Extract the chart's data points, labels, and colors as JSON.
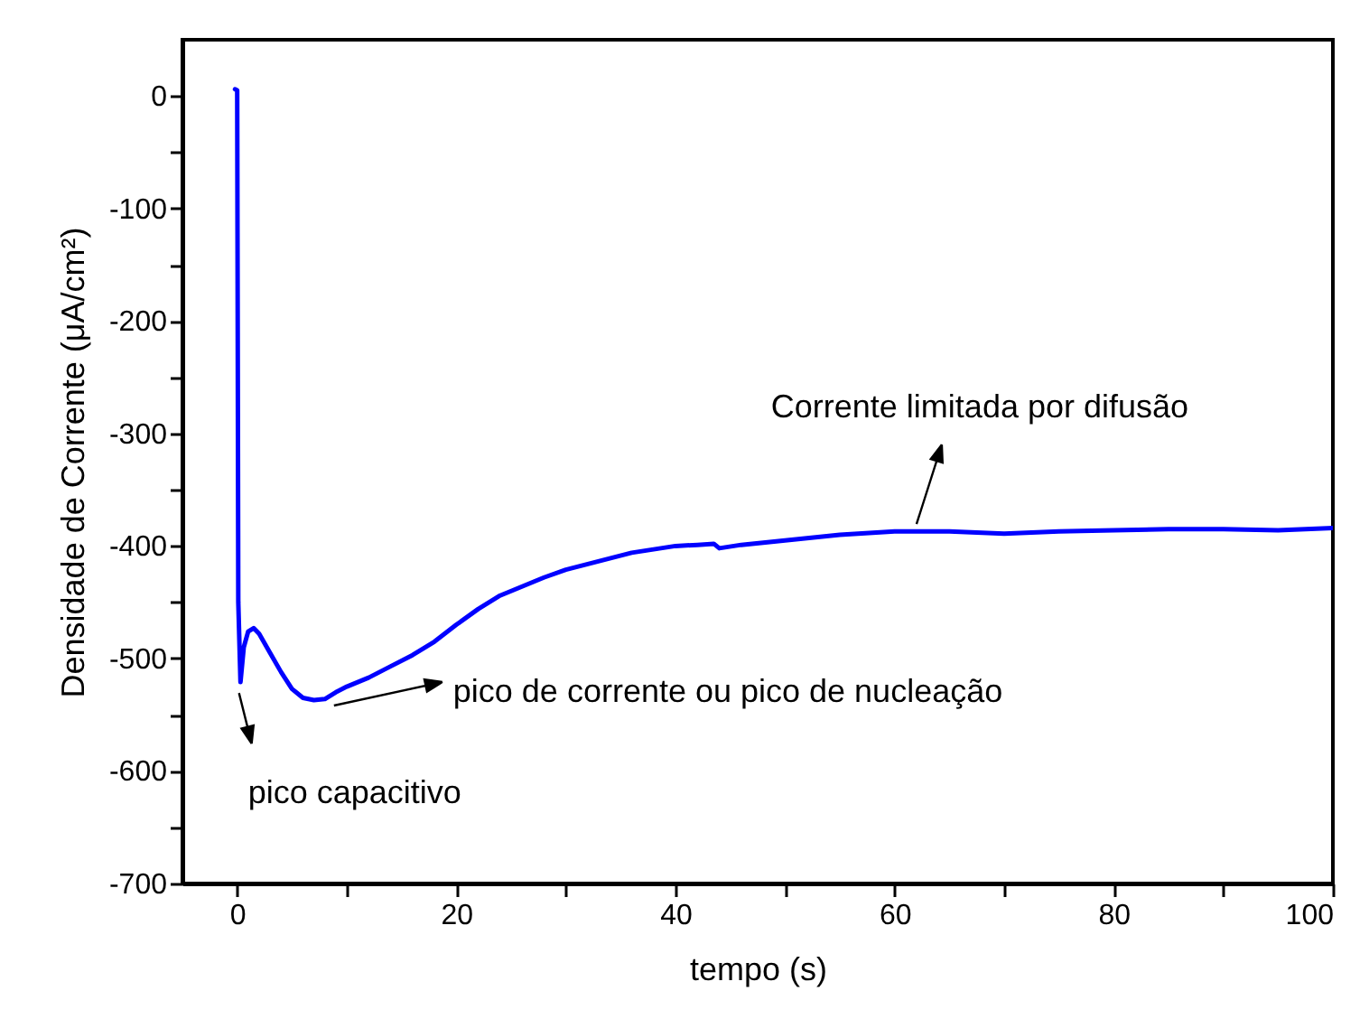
{
  "chart_data": {
    "type": "line",
    "xlabel": "tempo (s)",
    "ylabel": "Densidade de Corrente (μA/cm²)",
    "xlim": [
      -5,
      100
    ],
    "ylim": [
      -700,
      50
    ],
    "xticks": [
      0,
      {
        "value": 10,
        "label": null
      },
      20,
      {
        "value": 30,
        "label": null
      },
      40,
      {
        "value": 50,
        "label": null
      },
      60,
      {
        "value": 70,
        "label": null
      },
      80,
      {
        "value": 90,
        "label": null
      },
      100
    ],
    "yticks": [
      -700,
      {
        "value": -650,
        "label": null
      },
      -600,
      {
        "value": -550,
        "label": null
      },
      -500,
      {
        "value": -450,
        "label": null
      },
      -400,
      {
        "value": -350,
        "label": null
      },
      -300,
      {
        "value": -250,
        "label": null
      },
      -200,
      {
        "value": -150,
        "label": null
      },
      -100,
      {
        "value": -50,
        "label": null
      },
      0
    ],
    "grid": false,
    "marker": "none",
    "line_style": "solid",
    "series": [
      {
        "color": "#0000ff",
        "x": [
          -0.2,
          0,
          0.1,
          0.3,
          0.6,
          1,
          1.5,
          2,
          3,
          4,
          5,
          6,
          7,
          8,
          9,
          10,
          12,
          14,
          16,
          18,
          20,
          22,
          24,
          26,
          28,
          30,
          32,
          34,
          36,
          38,
          40,
          42,
          43.5,
          44,
          46,
          50,
          55,
          60,
          65,
          70,
          75,
          80,
          85,
          90,
          95,
          100
        ],
        "values": [
          6,
          5,
          -450,
          -521,
          -490,
          -476,
          -473,
          -478,
          -495,
          -512,
          -527,
          -535,
          -537,
          -536,
          -530,
          -525,
          -517,
          -507,
          -497,
          -485,
          -470,
          -456,
          -444,
          -436,
          -428,
          -421,
          -416,
          -411,
          -406,
          -403,
          -400,
          -399,
          -398,
          -402,
          -399,
          -395,
          -390,
          -387,
          -387,
          -389,
          -387,
          -386,
          -385,
          -385,
          -386,
          -384
        ]
      }
    ],
    "annotations": [
      {
        "text": "pico capacitivo",
        "x": 0,
        "y": -521
      },
      {
        "text": "pico de corrente ou pico de nucleação",
        "x": 8.5,
        "y": -537
      },
      {
        "text": "Corrente limitada por difusão",
        "x": 62,
        "y": -387
      }
    ]
  }
}
